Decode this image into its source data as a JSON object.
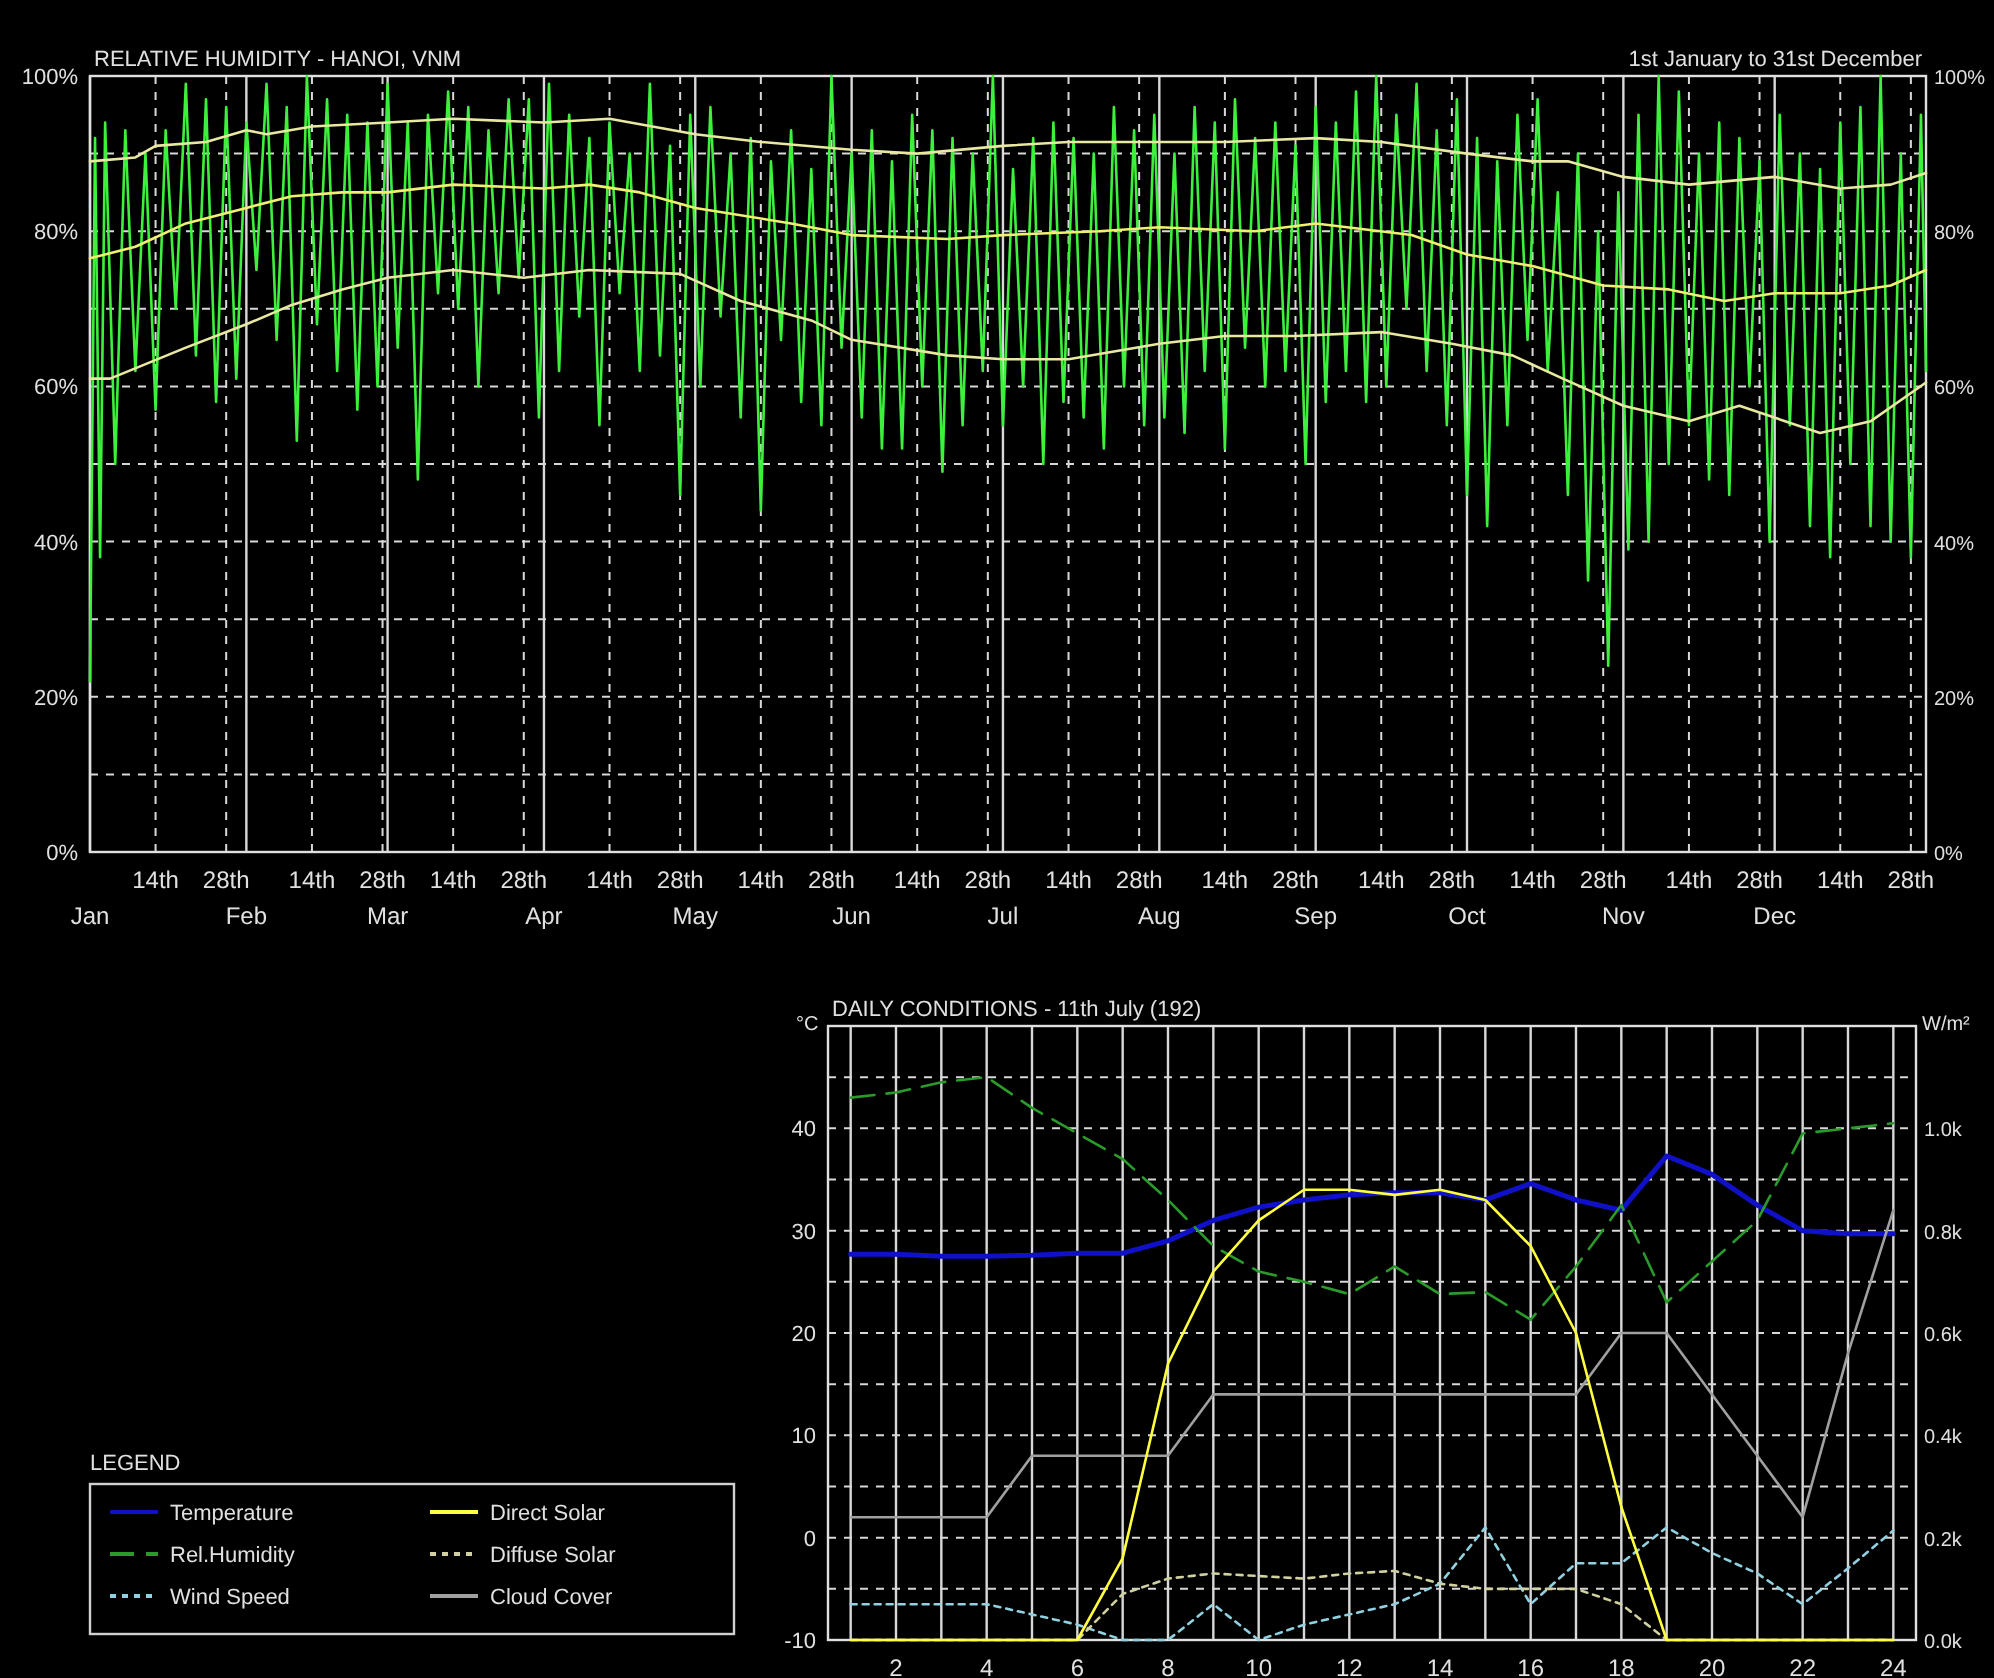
{
  "chart_data": [
    {
      "type": "line",
      "title": "RELATIVE HUMIDITY - HANOI, VNM",
      "subtitle": "1st January to 31st December",
      "xlim": [
        "--01-01",
        "--12-31"
      ],
      "xticks": [
        {
          "value": "--01-01",
          "label": null
        },
        {
          "value": "--01-14",
          "label": "14th"
        },
        {
          "value": "--01-28",
          "label": "28th"
        },
        {
          "value": "--02-01",
          "label": null
        },
        {
          "value": "--02-14",
          "label": "14th"
        },
        {
          "value": "--02-28",
          "label": "28th"
        },
        {
          "value": "--03-01",
          "label": null
        },
        {
          "value": "--03-14",
          "label": "14th"
        },
        {
          "value": "--03-28",
          "label": "28th"
        },
        {
          "value": "--04-01",
          "label": null
        },
        {
          "value": "--04-14",
          "label": "14th"
        },
        {
          "value": "--04-28",
          "label": "28th"
        },
        {
          "value": "--05-01",
          "label": null
        },
        {
          "value": "--05-14",
          "label": "14th"
        },
        {
          "value": "--05-28",
          "label": "28th"
        },
        {
          "value": "--06-01",
          "label": null
        },
        {
          "value": "--06-14",
          "label": "14th"
        },
        {
          "value": "--06-28",
          "label": "28th"
        },
        {
          "value": "--07-01",
          "label": null
        },
        {
          "value": "--07-14",
          "label": "14th"
        },
        {
          "value": "--07-28",
          "label": "28th"
        },
        {
          "value": "--08-01",
          "label": null
        },
        {
          "value": "--08-14",
          "label": "14th"
        },
        {
          "value": "--08-28",
          "label": "28th"
        },
        {
          "value": "--09-01",
          "label": null
        },
        {
          "value": "--09-14",
          "label": "14th"
        },
        {
          "value": "--09-28",
          "label": "28th"
        },
        {
          "value": "--10-01",
          "label": null
        },
        {
          "value": "--10-14",
          "label": "14th"
        },
        {
          "value": "--10-28",
          "label": "28th"
        },
        {
          "value": "--11-01",
          "label": null
        },
        {
          "value": "--11-14",
          "label": "14th"
        },
        {
          "value": "--11-28",
          "label": "28th"
        },
        {
          "value": "--12-01",
          "label": null
        },
        {
          "value": "--12-14",
          "label": "14th"
        },
        {
          "value": "--12-28",
          "label": "28th"
        }
      ],
      "annotations": [
        "Jan",
        "Feb",
        "Mar",
        "Apr",
        "May",
        "Jun",
        "Jul",
        "Aug",
        "Sep",
        "Oct",
        "Nov",
        "Dec"
      ],
      "ylim": [
        0,
        100
      ],
      "yticks": [
        {
          "value": 0,
          "label": "0%"
        },
        {
          "value": 10,
          "label": null
        },
        {
          "value": 20,
          "label": "20%"
        },
        {
          "value": 30,
          "label": null
        },
        {
          "value": 40,
          "label": "40%"
        },
        {
          "value": 50,
          "label": null
        },
        {
          "value": 60,
          "label": "60%"
        },
        {
          "value": 70,
          "label": null
        },
        {
          "value": 80,
          "label": "80%"
        },
        {
          "value": 90,
          "label": null
        },
        {
          "value": 100,
          "label": "100%"
        }
      ],
      "y2lim": [
        0,
        100
      ],
      "y2ticks": [
        {
          "value": 0,
          "label": "0%"
        },
        {
          "value": 20,
          "label": "20%"
        },
        {
          "value": 40,
          "label": "40%"
        },
        {
          "value": 60,
          "label": "60%"
        },
        {
          "value": 80,
          "label": "80%"
        },
        {
          "value": 100,
          "label": "100%"
        }
      ],
      "grid": true,
      "legend": false,
      "series": [
        {
          "color": "#3cf03c",
          "line_style": "solid",
          "x": [
            "--01-01",
            "--01-02",
            "--01-03",
            "--01-04",
            "--01-06",
            "--01-08",
            "--01-10",
            "--01-12",
            "--01-14",
            "--01-16",
            "--01-18",
            "--01-20",
            "--01-22",
            "--01-24",
            "--01-26",
            "--01-28",
            "--01-30",
            "--02-01",
            "--02-03",
            "--02-05",
            "--02-07",
            "--02-09",
            "--02-11",
            "--02-13",
            "--02-15",
            "--02-17",
            "--02-19",
            "--02-21",
            "--02-23",
            "--02-25",
            "--02-27",
            "--03-01",
            "--03-03",
            "--03-05",
            "--03-07",
            "--03-09",
            "--03-11",
            "--03-13",
            "--03-15",
            "--03-17",
            "--03-19",
            "--03-21",
            "--03-23",
            "--03-25",
            "--03-27",
            "--03-29",
            "--03-31",
            "--04-02",
            "--04-04",
            "--04-06",
            "--04-08",
            "--04-10",
            "--04-12",
            "--04-14",
            "--04-16",
            "--04-18",
            "--04-20",
            "--04-22",
            "--04-24",
            "--04-26",
            "--04-28",
            "--04-30",
            "--05-02",
            "--05-04",
            "--05-06",
            "--05-08",
            "--05-10",
            "--05-12",
            "--05-14",
            "--05-16",
            "--05-18",
            "--05-20",
            "--05-22",
            "--05-24",
            "--05-26",
            "--05-28",
            "--05-30",
            "--06-01",
            "--06-03",
            "--06-05",
            "--06-07",
            "--06-09",
            "--06-11",
            "--06-13",
            "--06-15",
            "--06-17",
            "--06-19",
            "--06-21",
            "--06-23",
            "--06-25",
            "--06-27",
            "--06-29",
            "--07-01",
            "--07-03",
            "--07-05",
            "--07-07",
            "--07-09",
            "--07-11",
            "--07-13",
            "--07-15",
            "--07-17",
            "--07-19",
            "--07-21",
            "--07-23",
            "--07-25",
            "--07-27",
            "--07-29",
            "--07-31",
            "--08-02",
            "--08-04",
            "--08-06",
            "--08-08",
            "--08-10",
            "--08-12",
            "--08-14",
            "--08-16",
            "--08-18",
            "--08-20",
            "--08-22",
            "--08-24",
            "--08-26",
            "--08-28",
            "--08-30",
            "--09-01",
            "--09-03",
            "--09-05",
            "--09-07",
            "--09-09",
            "--09-11",
            "--09-13",
            "--09-15",
            "--09-17",
            "--09-19",
            "--09-21",
            "--09-23",
            "--09-25",
            "--09-27",
            "--09-29",
            "--10-01",
            "--10-03",
            "--10-05",
            "--10-07",
            "--10-09",
            "--10-11",
            "--10-13",
            "--10-15",
            "--10-17",
            "--10-19",
            "--10-21",
            "--10-23",
            "--10-25",
            "--10-27",
            "--10-29",
            "--10-31",
            "--11-02",
            "--11-04",
            "--11-06",
            "--11-08",
            "--11-10",
            "--11-12",
            "--11-14",
            "--11-16",
            "--11-18",
            "--11-20",
            "--11-22",
            "--11-24",
            "--11-26",
            "--11-28",
            "--11-30",
            "--12-02",
            "--12-04",
            "--12-06",
            "--12-08",
            "--12-10",
            "--12-12",
            "--12-14",
            "--12-16",
            "--12-18",
            "--12-20",
            "--12-22",
            "--12-24",
            "--12-26",
            "--12-28",
            "--12-30",
            "--12-31"
          ],
          "values": [
            22,
            92,
            38,
            94,
            50,
            93,
            62,
            90,
            57,
            93,
            70,
            99,
            64,
            97,
            58,
            96,
            61,
            94,
            75,
            99,
            66,
            96,
            53,
            100,
            68,
            97,
            62,
            95,
            57,
            94,
            60,
            99,
            65,
            94,
            48,
            95,
            72,
            98,
            70,
            96,
            60,
            93,
            72,
            97,
            74,
            97,
            56,
            99,
            62,
            95,
            69,
            92,
            55,
            94,
            72,
            90,
            62,
            99,
            64,
            91,
            46,
            95,
            60,
            96,
            69,
            90,
            56,
            92,
            44,
            89,
            66,
            93,
            58,
            88,
            55,
            100,
            65,
            90,
            56,
            93,
            52,
            89,
            52,
            95,
            60,
            93,
            49,
            92,
            55,
            90,
            62,
            100,
            55,
            88,
            60,
            92,
            50,
            94,
            58,
            92,
            56,
            90,
            52,
            96,
            60,
            93,
            55,
            95,
            56,
            90,
            54,
            96,
            62,
            94,
            52,
            97,
            65,
            92,
            60,
            94,
            62,
            91,
            50,
            96,
            58,
            94,
            62,
            98,
            58,
            100,
            60,
            95,
            70,
            99,
            62,
            93,
            55,
            97,
            46,
            92,
            42,
            89,
            55,
            95,
            66,
            97,
            62,
            85,
            46,
            90,
            35,
            80,
            24,
            85,
            39,
            95,
            40,
            100,
            50,
            98,
            55,
            90,
            48,
            94,
            46,
            92,
            60,
            89,
            40,
            95,
            55,
            90,
            42,
            88,
            38,
            94,
            50,
            96,
            42,
            100,
            40,
            90,
            38,
            95,
            62
          ]
        },
        {
          "color": "#e8e8a0",
          "line_style": "solid",
          "x": [
            "--01-01",
            "--01-10",
            "--01-14",
            "--01-24",
            "--02-01",
            "--02-05",
            "--02-14",
            "--03-01",
            "--03-14",
            "--04-01",
            "--04-14",
            "--05-01",
            "--05-14",
            "--06-01",
            "--06-14",
            "--07-01",
            "--07-14",
            "--08-01",
            "--08-14",
            "--09-01",
            "--09-14",
            "--10-01",
            "--10-14",
            "--10-21",
            "--11-01",
            "--11-14",
            "--12-01",
            "--12-14",
            "--12-24",
            "--12-31"
          ],
          "values": [
            89,
            89.5,
            91,
            91.5,
            93,
            92.5,
            93.5,
            94,
            94.5,
            94,
            94.5,
            92.5,
            91.5,
            90.5,
            90,
            91,
            91.5,
            91.5,
            91.5,
            92,
            91.5,
            90,
            89,
            89,
            87,
            86,
            87,
            85.5,
            86,
            87.5
          ]
        },
        {
          "color": "#f0f070",
          "line_style": "solid",
          "x": [
            "--01-01",
            "--01-10",
            "--01-20",
            "--02-01",
            "--02-10",
            "--02-20",
            "--03-01",
            "--03-14",
            "--04-01",
            "--04-10",
            "--04-20",
            "--05-01",
            "--05-20",
            "--06-01",
            "--06-20",
            "--07-01",
            "--07-20",
            "--08-01",
            "--08-20",
            "--09-01",
            "--09-20",
            "--10-01",
            "--10-14",
            "--10-28",
            "--11-10",
            "--11-21",
            "--12-01",
            "--12-14",
            "--12-24",
            "--12-31"
          ],
          "values": [
            76.5,
            78,
            81,
            83,
            84.5,
            85,
            85,
            86,
            85.5,
            86,
            85,
            83,
            81,
            79.5,
            79,
            79.5,
            80,
            80.5,
            80,
            81,
            79.5,
            77,
            75.5,
            73,
            72.5,
            71,
            72,
            72,
            73,
            75
          ]
        },
        {
          "color": "#e8e8a0",
          "line_style": "solid",
          "x": [
            "--01-01",
            "--01-05",
            "--01-20",
            "--02-01",
            "--02-10",
            "--02-20",
            "--03-01",
            "--03-14",
            "--03-28",
            "--04-10",
            "--04-28",
            "--05-10",
            "--05-24",
            "--06-01",
            "--06-20",
            "--07-01",
            "--07-14",
            "--08-01",
            "--08-14",
            "--08-28",
            "--09-14",
            "--09-28",
            "--10-10",
            "--10-20",
            "--11-01",
            "--11-14",
            "--11-24",
            "--12-10",
            "--12-20",
            "--12-31"
          ],
          "values": [
            61,
            61,
            65,
            68,
            70.5,
            72.5,
            74,
            75,
            74,
            75,
            74.5,
            71,
            68.5,
            66,
            64,
            63.5,
            63.5,
            65.5,
            66.5,
            66.5,
            67,
            65.5,
            64,
            61,
            57.5,
            55.5,
            57.5,
            54,
            55.5,
            60.5
          ]
        }
      ]
    },
    {
      "type": "line",
      "title": "DAILY CONDITIONS - 11th July (192)",
      "ylabel": "°C",
      "y2label": "W/m²",
      "legend_title": "LEGEND",
      "legend": "left",
      "grid": true,
      "x": [
        1,
        2,
        3,
        4,
        5,
        6,
        7,
        8,
        9,
        10,
        11,
        12,
        13,
        14,
        15,
        16,
        17,
        18,
        19,
        20,
        21,
        22,
        23,
        24
      ],
      "xlim": [
        0.5,
        24.5
      ],
      "xticks": [
        {
          "value": 1,
          "label": null
        },
        2,
        {
          "value": 3,
          "label": null
        },
        4,
        {
          "value": 5,
          "label": null
        },
        6,
        {
          "value": 7,
          "label": null
        },
        8,
        {
          "value": 9,
          "label": null
        },
        10,
        {
          "value": 11,
          "label": null
        },
        12,
        {
          "value": 13,
          "label": null
        },
        14,
        {
          "value": 15,
          "label": null
        },
        16,
        {
          "value": 17,
          "label": null
        },
        18,
        {
          "value": 19,
          "label": null
        },
        20,
        {
          "value": 21,
          "label": null
        },
        22,
        {
          "value": 23,
          "label": null
        },
        24
      ],
      "ylim": [
        -10,
        50
      ],
      "yticks": [
        -10,
        {
          "value": -5,
          "label": null
        },
        0,
        {
          "value": 5,
          "label": null
        },
        10,
        {
          "value": 15,
          "label": null
        },
        20,
        {
          "value": 25,
          "label": null
        },
        30,
        {
          "value": 35,
          "label": null
        },
        40,
        {
          "value": 45,
          "label": null
        }
      ],
      "y2lim": [
        0,
        1200
      ],
      "y2ticks": [
        {
          "value": 0,
          "label": "0.0k"
        },
        {
          "value": 200,
          "label": "0.2k"
        },
        {
          "value": 400,
          "label": "0.4k"
        },
        {
          "value": 600,
          "label": "0.6k"
        },
        {
          "value": 800,
          "label": "0.8k"
        },
        {
          "value": 1000,
          "label": "1.0k"
        }
      ],
      "series": [
        {
          "name": "Temperature",
          "color": "#1010c8",
          "line_style": "solid",
          "values": [
            27.7,
            27.7,
            27.5,
            27.5,
            27.6,
            27.8,
            27.8,
            29,
            31,
            32.3,
            33,
            33.5,
            33.7,
            33.7,
            33,
            34.6,
            33,
            32,
            37.3,
            35.5,
            32.5,
            30,
            29.7,
            29.7
          ]
        },
        {
          "name": "Rel.Humidity",
          "color": "#2a9a2a",
          "line_style": "dashed",
          "values": [
            43,
            43.5,
            44.5,
            45,
            42,
            39.5,
            37,
            33,
            28.5,
            26,
            25,
            23.8,
            26.5,
            23.8,
            24,
            21.3,
            26.5,
            32.5,
            23,
            27,
            31,
            39.5,
            40,
            40.5
          ]
        },
        {
          "name": "Wind Speed",
          "color": "#90d0e0",
          "line_style": "dotted",
          "values": [
            -6.5,
            -6.5,
            -6.5,
            -6.5,
            -7.5,
            -8.5,
            -10,
            -10,
            -6.5,
            -10,
            -8.5,
            -7.5,
            -6.5,
            -4.5,
            1,
            -6.5,
            -2.5,
            -2.5,
            1,
            -1.5,
            -3.5,
            -6.5,
            -3,
            0.7
          ]
        },
        {
          "name": "Direct Solar",
          "color": "#ffff40",
          "line_style": "solid",
          "axis": "y2",
          "values": [
            0,
            0,
            0,
            0,
            0,
            0,
            160,
            540,
            720,
            820,
            880,
            880,
            870,
            880,
            860,
            770,
            600,
            260,
            0,
            0,
            0,
            0,
            0,
            0
          ]
        },
        {
          "name": "Diffuse Solar",
          "color": "#d0d0a0",
          "line_style": "dotted",
          "axis": "y2",
          "values": [
            0,
            0,
            0,
            0,
            0,
            0,
            90,
            120,
            130,
            125,
            120,
            130,
            135,
            110,
            100,
            100,
            100,
            70,
            0,
            0,
            0,
            0,
            0,
            0
          ]
        },
        {
          "name": "Cloud Cover",
          "color": "#a0a0a0",
          "line_style": "solid",
          "values": [
            2,
            2,
            2,
            2,
            8,
            8,
            8,
            8,
            14,
            14,
            14,
            14,
            14,
            14,
            14,
            14,
            14,
            20,
            20,
            14,
            8,
            2,
            18,
            32
          ]
        }
      ]
    }
  ]
}
